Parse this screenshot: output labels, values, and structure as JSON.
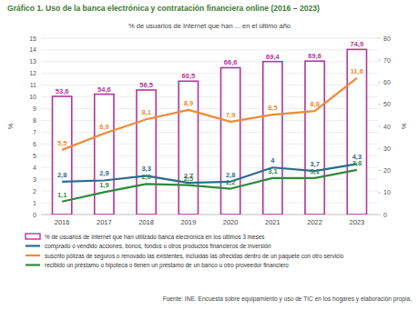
{
  "chart_data": {
    "type": "bar",
    "title": "Gráfico 1. Uso de la banca electrónica y contratación financiera online (2016 – 2023)",
    "subtitle": "% de usuarios de Internet que han ... en el último año",
    "y_label": "%",
    "y2_label": "%",
    "source": "Fuente: INE. Encuesta sobre equipamiento y uso de TIC en los hogares y elaboración propia.",
    "categories": [
      "2016",
      "2017",
      "2018",
      "2019",
      "2020",
      "2021",
      "2022",
      "2023"
    ],
    "ylim": [
      0,
      15
    ],
    "yticks": [
      0,
      1,
      2,
      3,
      4,
      5,
      6,
      7,
      8,
      9,
      10,
      11,
      12,
      13,
      14,
      15
    ],
    "y2lim": [
      0,
      80
    ],
    "y2ticks": [
      0,
      10,
      20,
      30,
      40,
      50,
      60,
      70,
      80
    ],
    "grid": true,
    "legend": "bottom",
    "data_labels": true,
    "series": [
      {
        "name": "% de usuarios de Internet que han utilizado banca electrónica en los últimos 3 meses",
        "type": "bar",
        "axis": "y2",
        "color": "#b8339b",
        "values": [
          53.6,
          54.6,
          56.5,
          60.5,
          66.6,
          69.4,
          69.6,
          74.9
        ],
        "value_labels": [
          "53,6",
          "54,6",
          "56,5",
          "60,5",
          "66,6",
          "69,4",
          "69,6",
          "74,9"
        ]
      },
      {
        "name": "comprado o vendido acciones, bonos, fondos u otros productos financieros de inversión",
        "type": "line",
        "color": "#2b6c8e",
        "values": [
          2.8,
          2.9,
          3.3,
          2.7,
          2.8,
          4,
          3.7,
          4.3
        ],
        "value_labels": [
          "2,8",
          "2,9",
          "3,3",
          "2,7",
          "2,8",
          "4",
          "3,7",
          "4,3"
        ]
      },
      {
        "name": "suscrito pólizas de seguros o renovado las existentes, incluidas las ofrecidas dentro de un paquete con otro servicio",
        "type": "line",
        "color": "#f08a35",
        "values": [
          5.5,
          6.9,
          8.1,
          8.9,
          7.9,
          8.5,
          8.8,
          11.6
        ],
        "value_labels": [
          "5,5",
          "6,9",
          "8,1",
          "8,9",
          "7,9",
          "8,5",
          "8,8",
          "11,6"
        ]
      },
      {
        "name": "recibido un préstamo o hipoteca o tienen un préstamo de un banco u otro proveedor financiero",
        "type": "line",
        "color": "#2f8a3c",
        "values": [
          1.1,
          1.9,
          2.6,
          2.5,
          2.2,
          3.1,
          3.1,
          3.8
        ],
        "value_labels": [
          "1,1",
          "1,9",
          "2,6",
          "2,5",
          "2,2",
          "3,1",
          "3,1",
          "3,8"
        ]
      }
    ]
  }
}
